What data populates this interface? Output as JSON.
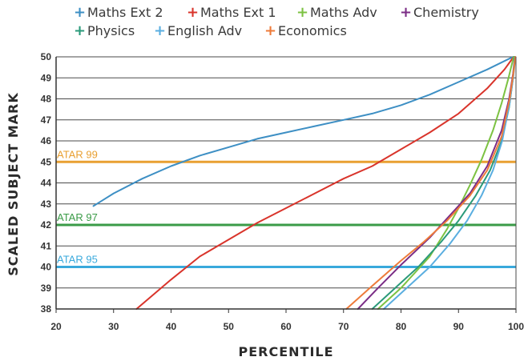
{
  "chart_data": {
    "type": "line",
    "title": "",
    "xlabel": "PERCENTILE",
    "ylabel": "SCALED SUBJECT MARK",
    "xlim": [
      20,
      100
    ],
    "ylim": [
      38,
      50
    ],
    "x_ticks": [
      "20",
      "30",
      "40",
      "50",
      "60",
      "70",
      "80",
      "90",
      "100"
    ],
    "y_ticks": [
      "38",
      "39",
      "40",
      "41",
      "42",
      "43",
      "44",
      "45",
      "46",
      "47",
      "48",
      "49",
      "50"
    ],
    "grid": "horizontal",
    "legend_placement": "top",
    "series": [
      {
        "name": "Maths Ext 2",
        "color": "#3d8fc4",
        "points": [
          [
            26.5,
            42.9
          ],
          [
            30,
            43.5
          ],
          [
            35,
            44.2
          ],
          [
            40,
            44.8
          ],
          [
            45,
            45.3
          ],
          [
            50,
            45.7
          ],
          [
            55,
            46.1
          ],
          [
            60,
            46.4
          ],
          [
            65,
            46.7
          ],
          [
            70,
            47.0
          ],
          [
            75,
            47.3
          ],
          [
            80,
            47.7
          ],
          [
            85,
            48.2
          ],
          [
            90,
            48.8
          ],
          [
            95,
            49.4
          ],
          [
            99.5,
            50
          ]
        ]
      },
      {
        "name": "Maths Ext 1",
        "color": "#d9342b",
        "points": [
          [
            34,
            38.0
          ],
          [
            40,
            39.4
          ],
          [
            45,
            40.5
          ],
          [
            50,
            41.3
          ],
          [
            55,
            42.1
          ],
          [
            60,
            42.8
          ],
          [
            65,
            43.5
          ],
          [
            70,
            44.2
          ],
          [
            75,
            44.8
          ],
          [
            80,
            45.6
          ],
          [
            85,
            46.4
          ],
          [
            90,
            47.3
          ],
          [
            95,
            48.5
          ],
          [
            98,
            49.4
          ],
          [
            99.6,
            50
          ]
        ]
      },
      {
        "name": "Maths Adv",
        "color": "#7cc242",
        "points": [
          [
            76,
            38.0
          ],
          [
            80,
            39.0
          ],
          [
            85,
            40.5
          ],
          [
            88,
            41.8
          ],
          [
            90,
            42.8
          ],
          [
            92,
            43.9
          ],
          [
            94,
            45.1
          ],
          [
            96,
            46.5
          ],
          [
            97.5,
            47.8
          ],
          [
            98.7,
            49.0
          ],
          [
            99.6,
            50
          ]
        ]
      },
      {
        "name": "Chemistry",
        "color": "#7b2d86",
        "points": [
          [
            72.5,
            38.0
          ],
          [
            76,
            39.0
          ],
          [
            80,
            40.1
          ],
          [
            85,
            41.4
          ],
          [
            88,
            42.3
          ],
          [
            92,
            43.5
          ],
          [
            95,
            44.8
          ],
          [
            97.5,
            46.5
          ],
          [
            98.8,
            48.0
          ],
          [
            99.5,
            49.2
          ],
          [
            99.8,
            50
          ]
        ]
      },
      {
        "name": "Physics",
        "color": "#2a9a7a",
        "points": [
          [
            75,
            38.0
          ],
          [
            79,
            39.0
          ],
          [
            83,
            40.0
          ],
          [
            87,
            41.2
          ],
          [
            90,
            42.2
          ],
          [
            93,
            43.4
          ],
          [
            95.5,
            44.6
          ],
          [
            97.5,
            46.0
          ],
          [
            98.8,
            47.6
          ],
          [
            99.5,
            49.0
          ],
          [
            99.8,
            50
          ]
        ]
      },
      {
        "name": "English Adv",
        "color": "#5aaee0",
        "points": [
          [
            77,
            38.0
          ],
          [
            81,
            39.0
          ],
          [
            85,
            40.0
          ],
          [
            88.5,
            41.1
          ],
          [
            91.5,
            42.2
          ],
          [
            94,
            43.4
          ],
          [
            96,
            44.6
          ],
          [
            97.6,
            46.0
          ],
          [
            98.9,
            47.8
          ],
          [
            99.6,
            49.2
          ],
          [
            99.9,
            50
          ]
        ]
      },
      {
        "name": "Economics",
        "color": "#ee7b3a",
        "points": [
          [
            70.5,
            38.0
          ],
          [
            75,
            39.1
          ],
          [
            80,
            40.3
          ],
          [
            84,
            41.2
          ],
          [
            88,
            42.2
          ],
          [
            92,
            43.4
          ],
          [
            95,
            44.6
          ],
          [
            97.5,
            46.2
          ],
          [
            98.9,
            48.0
          ],
          [
            99.6,
            49.3
          ],
          [
            99.9,
            50
          ]
        ]
      }
    ],
    "reference_lines": [
      {
        "label": "ATAR 99",
        "y": 45,
        "color": "#e9a032",
        "label_color": "#e9a032"
      },
      {
        "label": "ATAR 97",
        "y": 42,
        "color": "#3a9b47",
        "label_color": "#3a9b47"
      },
      {
        "label": "ATAR 95",
        "y": 40,
        "color": "#39a9dc",
        "label_color": "#39a9dc"
      }
    ],
    "legend": [
      {
        "name": "Maths Ext 2",
        "color": "#3d8fc4"
      },
      {
        "name": "Maths Ext 1",
        "color": "#d9342b"
      },
      {
        "name": "Maths Adv",
        "color": "#7cc242"
      },
      {
        "name": "Chemistry",
        "color": "#7b2d86"
      },
      {
        "name": "Physics",
        "color": "#2a9a7a"
      },
      {
        "name": "English Adv",
        "color": "#5aaee0"
      },
      {
        "name": "Economics",
        "color": "#ee7b3a"
      }
    ]
  }
}
